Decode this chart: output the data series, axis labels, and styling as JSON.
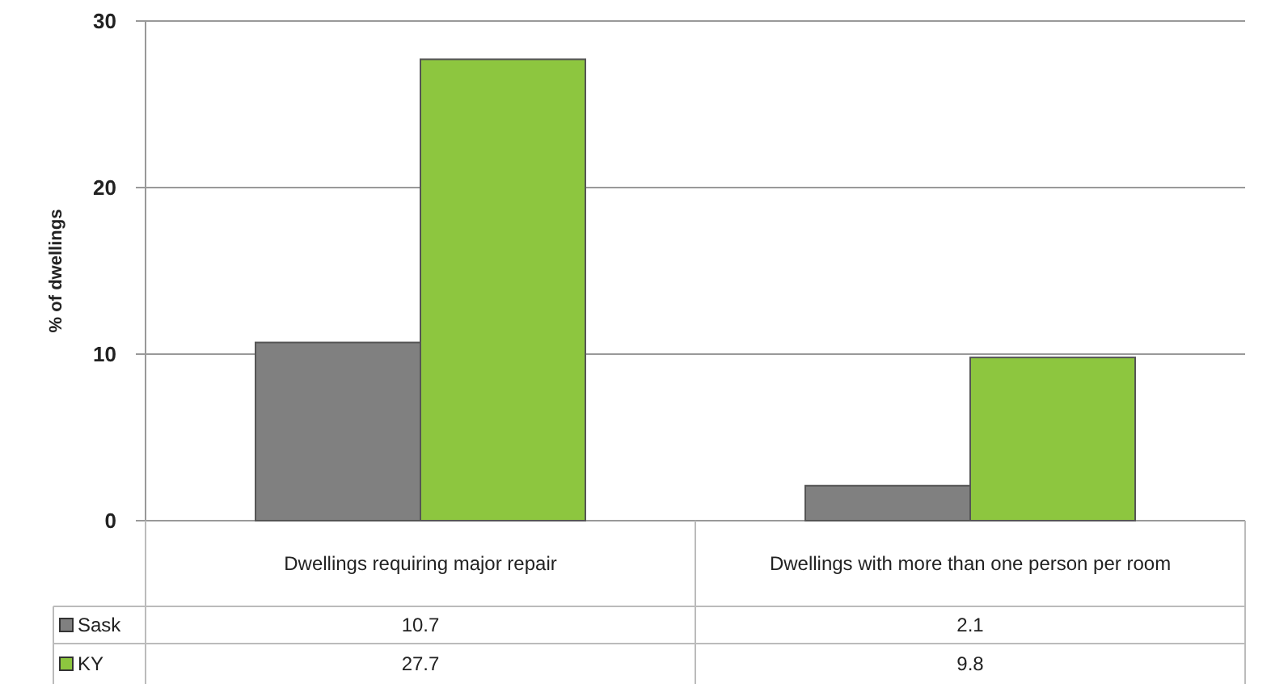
{
  "chart_data": {
    "type": "bar",
    "ylabel": "% of dwellings",
    "categories": [
      "Dwellings requiring major repair",
      "Dwellings with more than one person per room"
    ],
    "series": [
      {
        "name": "Sask",
        "color": "#808080",
        "values": [
          10.7,
          2.1
        ]
      },
      {
        "name": "KY",
        "color": "#8dc63f",
        "values": [
          27.7,
          9.8
        ]
      }
    ],
    "ylim": [
      0,
      30
    ],
    "yticks": [
      0,
      10,
      20,
      30
    ],
    "grid": "y",
    "data_labels": true,
    "legend": "bottom left"
  }
}
